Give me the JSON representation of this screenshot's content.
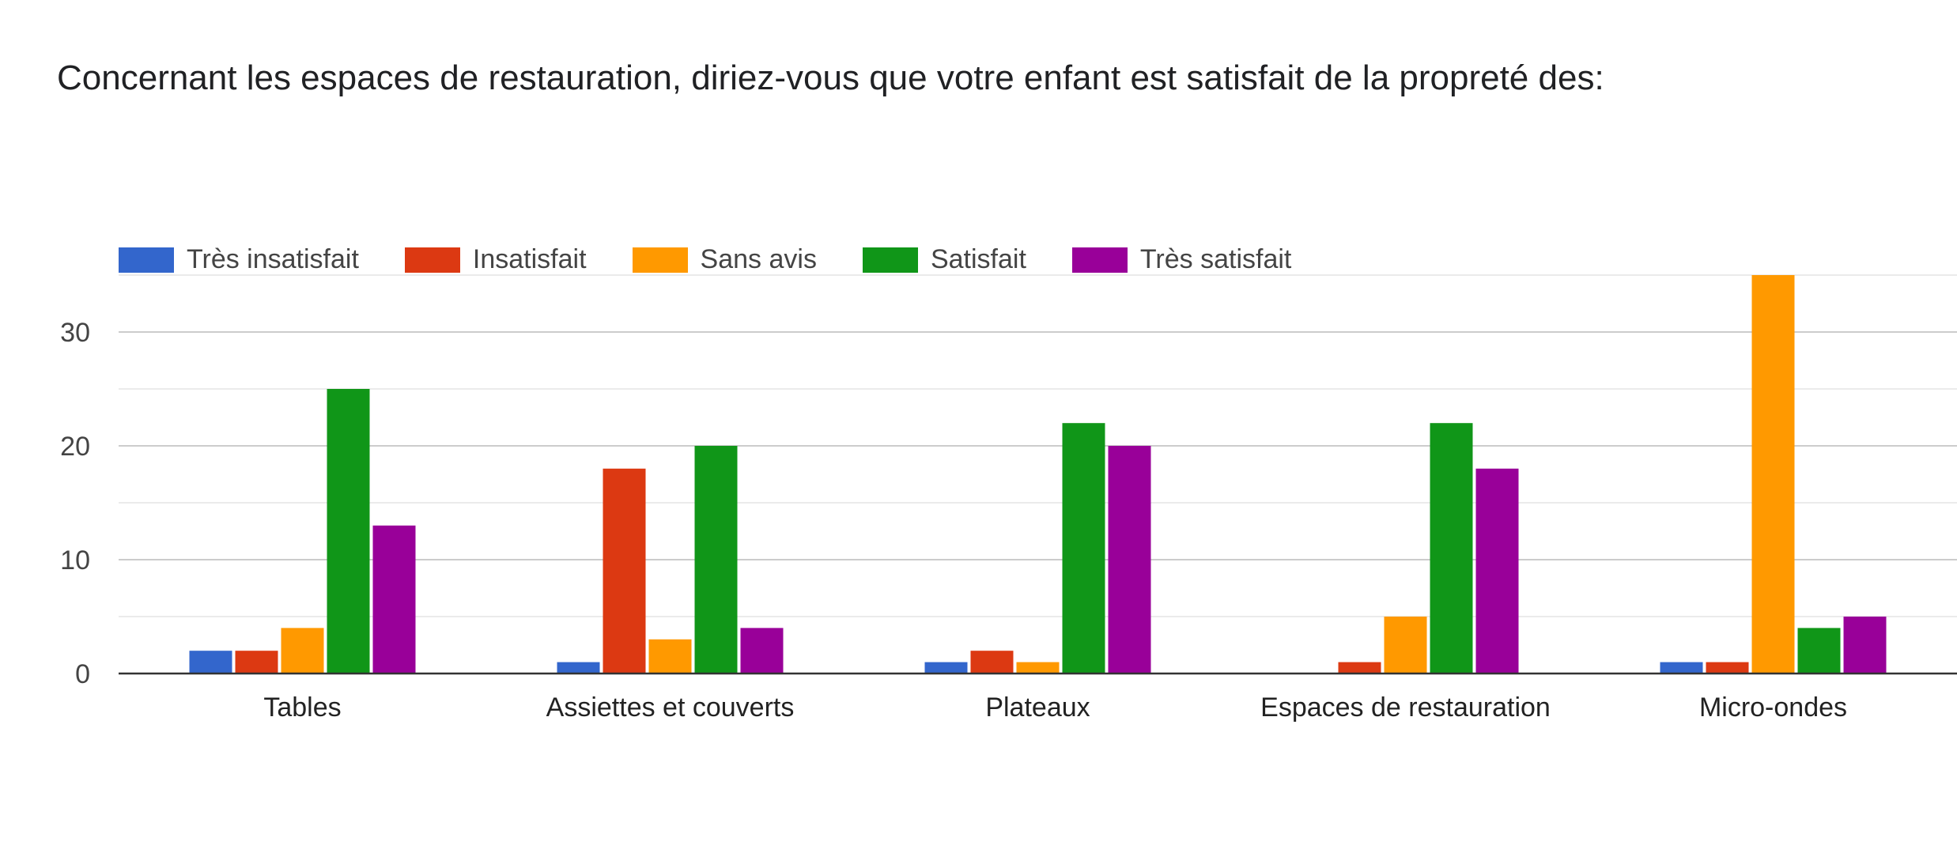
{
  "title": "Concernant les espaces de restauration, diriez-vous que votre enfant est satisfait de la propreté des:",
  "chart_data": {
    "type": "bar",
    "title": "Concernant les espaces de restauration, diriez-vous que votre enfant est satisfait de la propreté des:",
    "xlabel": "",
    "ylabel": "",
    "categories": [
      "Tables",
      "Assiettes et couverts",
      "Plateaux",
      "Espaces de restauration",
      "Micro-ondes"
    ],
    "series": [
      {
        "name": "Très insatisfait",
        "color": "#3366cc",
        "values": [
          2,
          1,
          1,
          0,
          1
        ]
      },
      {
        "name": "Insatisfait",
        "color": "#dc3912",
        "values": [
          2,
          18,
          2,
          1,
          1
        ]
      },
      {
        "name": "Sans avis",
        "color": "#ff9900",
        "values": [
          4,
          3,
          1,
          5,
          35
        ]
      },
      {
        "name": "Satisfait",
        "color": "#109618",
        "values": [
          25,
          20,
          22,
          22,
          4
        ]
      },
      {
        "name": "Très satisfait",
        "color": "#990099",
        "values": [
          13,
          4,
          20,
          18,
          5
        ]
      }
    ],
    "ylim": [
      0,
      35
    ],
    "yticks": [
      0,
      10,
      20,
      30
    ],
    "grid": true,
    "legend_position": "top-left"
  }
}
